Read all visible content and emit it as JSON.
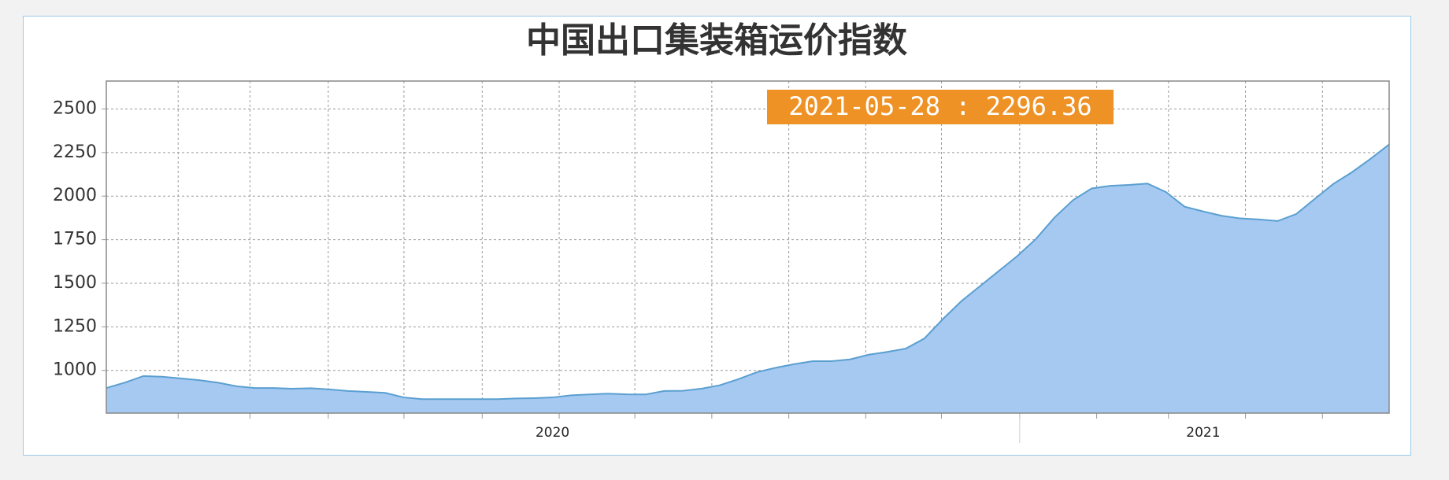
{
  "chart_data": {
    "type": "area",
    "title": "中国出口集装箱运价指数",
    "tooltip": "2021-05-28 : 2296.36",
    "categories": [
      null,
      null,
      null,
      null,
      null,
      null,
      null,
      null,
      null,
      null,
      null,
      null,
      null,
      null,
      null,
      null,
      null,
      null,
      null,
      null,
      null,
      null,
      null,
      null,
      "2020",
      null,
      null,
      null,
      null,
      null,
      null,
      null,
      null,
      null,
      null,
      null,
      null,
      null,
      null,
      null,
      null,
      null,
      null,
      null,
      null,
      null,
      null,
      null,
      null,
      null,
      null,
      null,
      null,
      null,
      null,
      null,
      null,
      null,
      null,
      "2021",
      null,
      null,
      null,
      null,
      null,
      null,
      null,
      null,
      null,
      null
    ],
    "values": [
      899,
      930,
      968,
      964,
      954,
      944,
      930,
      909,
      899,
      899,
      895,
      898,
      891,
      882,
      877,
      871,
      845,
      835,
      835,
      835,
      835,
      835,
      839,
      841,
      845,
      857,
      862,
      867,
      863,
      862,
      882,
      883,
      895,
      915,
      950,
      990,
      1015,
      1036,
      1053,
      1053,
      1063,
      1090,
      1106,
      1125,
      1183,
      1295,
      1398,
      1484,
      1570,
      1656,
      1754,
      1877,
      1977,
      2044,
      2059,
      2064,
      2072,
      2023,
      1939,
      1912,
      1887,
      1872,
      1866,
      1857,
      1897,
      1984,
      2070,
      2137,
      2214,
      2296.36
    ],
    "color": "#a6c9f2",
    "line_color": "#5a9fd0",
    "ylim": [
      755,
      2660
    ],
    "yticks": [
      1000,
      1250,
      1500,
      1750,
      2000,
      2250,
      2500
    ],
    "grid": true
  }
}
